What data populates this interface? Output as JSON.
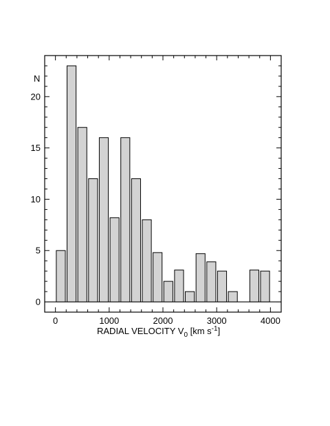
{
  "chart_data": {
    "type": "bar",
    "ylabel": "N",
    "xlabel": {
      "main": "RADIAL  VELOCITY  V",
      "subscript": "0",
      "unit_open": " [km s",
      "superscript": "-1",
      "unit_close": "]"
    },
    "xlim": [
      -200,
      4200
    ],
    "ylim": [
      -1,
      24
    ],
    "xticks": [
      0,
      1000,
      2000,
      3000,
      4000
    ],
    "yticks": [
      0,
      5,
      10,
      15,
      20
    ],
    "bin_width": 200,
    "bars": [
      {
        "x": 100,
        "value": 5
      },
      {
        "x": 300,
        "value": 23
      },
      {
        "x": 500,
        "value": 17
      },
      {
        "x": 700,
        "value": 12
      },
      {
        "x": 900,
        "value": 16
      },
      {
        "x": 1100,
        "value": 8.2
      },
      {
        "x": 1300,
        "value": 16
      },
      {
        "x": 1500,
        "value": 12
      },
      {
        "x": 1700,
        "value": 8
      },
      {
        "x": 1900,
        "value": 4.8
      },
      {
        "x": 2100,
        "value": 2
      },
      {
        "x": 2300,
        "value": 3.1
      },
      {
        "x": 2500,
        "value": 1
      },
      {
        "x": 2700,
        "value": 4.7
      },
      {
        "x": 2900,
        "value": 3.9
      },
      {
        "x": 3100,
        "value": 3
      },
      {
        "x": 3300,
        "value": 1
      },
      {
        "x": 3700,
        "value": 3.1
      },
      {
        "x": 3900,
        "value": 3
      }
    ],
    "bar_fill": "#d3d3d3",
    "bar_stroke": "#000000",
    "grid": false,
    "legend": "none"
  }
}
